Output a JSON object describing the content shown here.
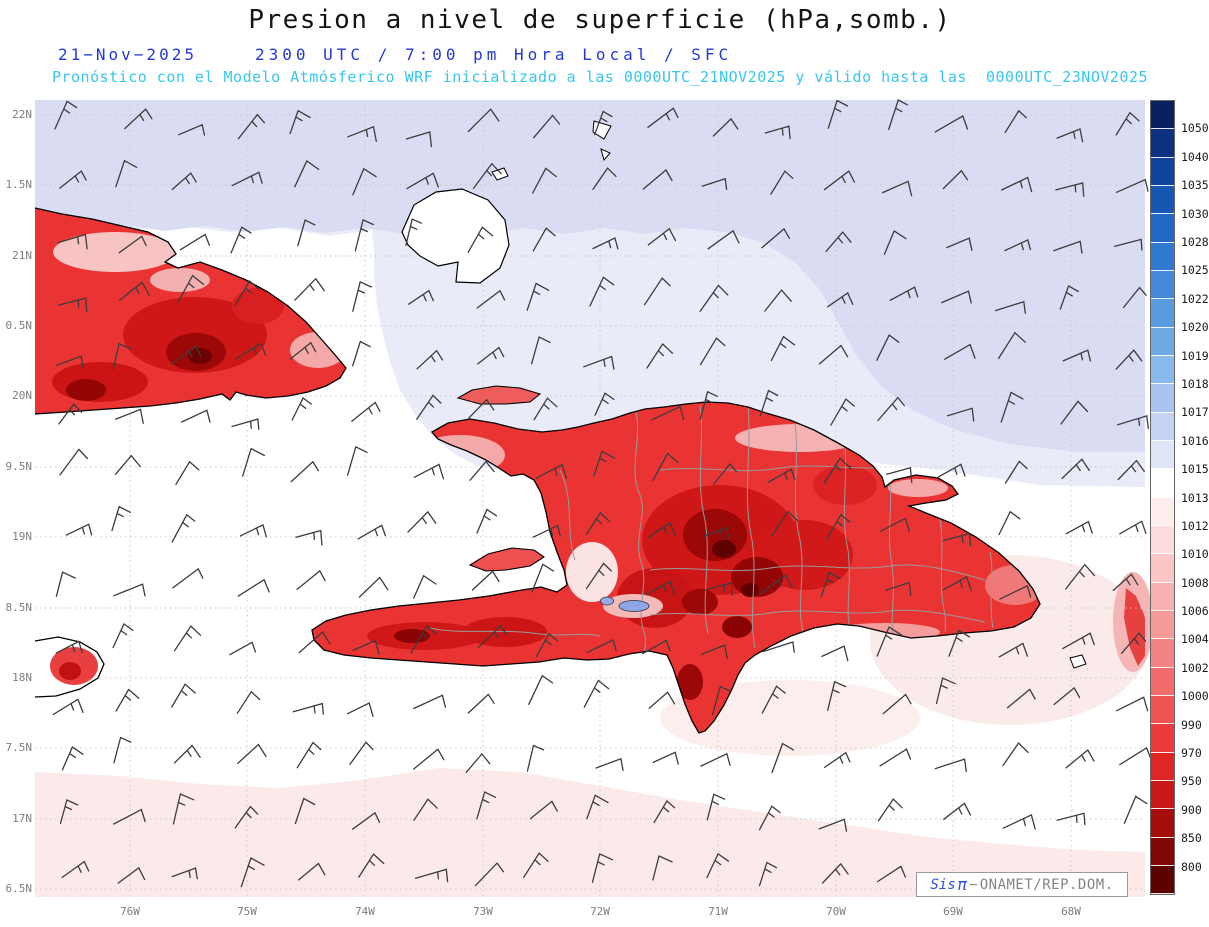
{
  "header": {
    "title": "Presion a nivel de superficie (hPa,somb.)",
    "date": "21−Nov−2025",
    "time_info": "2300 UTC / 7:00 pm Hora Local / SFC",
    "model_info": "Pronóstico con el Modelo Atmósferico WRF inicializado a las 0000UTC_21NOV2025 y válido hasta las  0000UTC_23NOV2025"
  },
  "map": {
    "lat_labels": [
      "22N",
      "1.5N",
      "21N",
      "0.5N",
      "20N",
      "9.5N",
      "19N",
      "8.5N",
      "18N",
      "7.5N",
      "17N",
      "6.5N"
    ],
    "lon_labels": [
      "76W",
      "75W",
      "74W",
      "73W",
      "72W",
      "71W",
      "70W",
      "69W",
      "68W"
    ]
  },
  "colorbar": {
    "unit": "hPa",
    "labels": [
      "1050",
      "1040",
      "1035",
      "1030",
      "1028",
      "1025",
      "1022",
      "1020",
      "1019",
      "1018",
      "1017",
      "1016",
      "1015",
      "1013",
      "1012",
      "1010",
      "1008",
      "1006",
      "1004",
      "1002",
      "1000",
      "990",
      "970",
      "950",
      "900",
      "850",
      "800"
    ],
    "colors": [
      "#0a2060",
      "#0d3080",
      "#11449c",
      "#1757b4",
      "#2168c4",
      "#2f7ad0",
      "#4389d8",
      "#589bde",
      "#6fa9e4",
      "#87b9ea",
      "#aac2ee",
      "#c6d2f2",
      "#e0e4f7",
      "#ffffff",
      "#fdeded",
      "#fcdcdc",
      "#fac6c6",
      "#f8b0b0",
      "#f69a9a",
      "#f48383",
      "#f26c6c",
      "#ef5454",
      "#eb3b3b",
      "#e02525",
      "#c81717",
      "#a50d0d",
      "#800505",
      "#5c0202"
    ]
  },
  "legend_colors": {
    "ocean_high_dark": "#d9dcf3",
    "ocean_high_light": "#e9ebf9",
    "ocean_low_pink": "#fceaea",
    "land_red": "#ea3434",
    "title_color": "#151515",
    "date_color": "#2438d8",
    "model_color": "#36c6f0"
  },
  "watermark": {
    "brand": "Sis",
    "pi": "π",
    "separator": "−",
    "org": "ONAMET/REP.DOM."
  }
}
